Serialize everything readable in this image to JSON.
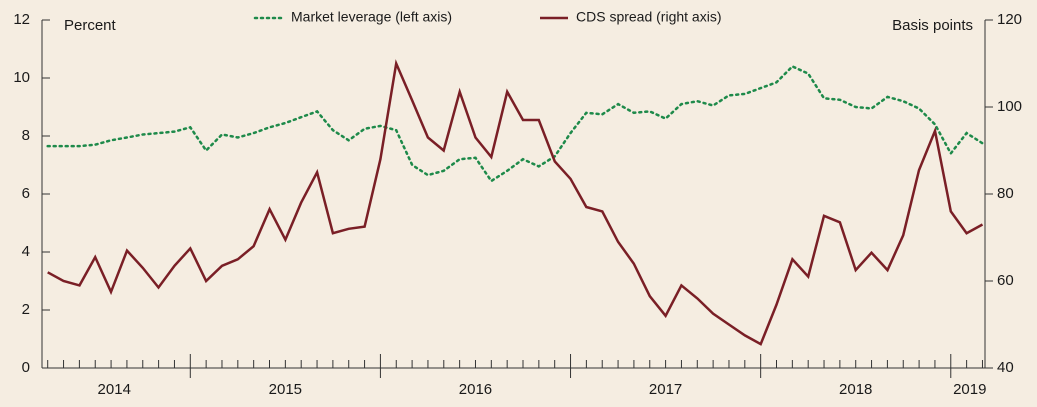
{
  "chart_data": {
    "type": "line",
    "y_label": "Percent",
    "y2_label": "Basis points",
    "x": [
      2014.25,
      2014.333,
      2014.417,
      2014.5,
      2014.583,
      2014.667,
      2014.75,
      2014.833,
      2014.917,
      2015.0,
      2015.083,
      2015.167,
      2015.25,
      2015.333,
      2015.417,
      2015.5,
      2015.583,
      2015.667,
      2015.75,
      2015.833,
      2015.917,
      2016.0,
      2016.083,
      2016.167,
      2016.25,
      2016.333,
      2016.417,
      2016.5,
      2016.583,
      2016.667,
      2016.75,
      2016.833,
      2016.917,
      2017.0,
      2017.083,
      2017.167,
      2017.25,
      2017.333,
      2017.417,
      2017.5,
      2017.583,
      2017.667,
      2017.75,
      2017.833,
      2017.917,
      2018.0,
      2018.083,
      2018.167,
      2018.25,
      2018.333,
      2018.417,
      2018.5,
      2018.583,
      2018.667,
      2018.75,
      2018.833,
      2018.917,
      2019.0,
      2019.083,
      2019.167
    ],
    "series": [
      {
        "name": "Market leverage (left axis)",
        "color": "#1e8a4a",
        "style": "dotted",
        "values": [
          7.65,
          7.65,
          7.65,
          7.7,
          7.85,
          7.95,
          8.05,
          8.1,
          8.15,
          8.3,
          7.5,
          8.05,
          7.95,
          8.1,
          8.3,
          8.45,
          8.65,
          8.85,
          8.2,
          7.85,
          8.25,
          8.35,
          8.2,
          7.0,
          6.65,
          6.8,
          7.2,
          7.25,
          6.45,
          6.8,
          7.2,
          6.95,
          7.3,
          8.1,
          8.8,
          8.75,
          9.1,
          8.8,
          8.85,
          8.6,
          9.1,
          9.2,
          9.05,
          9.4,
          9.45,
          9.65,
          9.85,
          10.4,
          10.15,
          9.3,
          9.25,
          9.0,
          8.95,
          9.35,
          9.2,
          8.95,
          8.4,
          7.4,
          8.1,
          7.75
        ]
      },
      {
        "name": "CDS spread (right axis)",
        "color": "#7a1f26",
        "style": "solid",
        "axis": "y2",
        "values": [
          62,
          60,
          59,
          65.5,
          57.5,
          67,
          63,
          58.5,
          63.5,
          67.5,
          60,
          63.5,
          65,
          68,
          76.5,
          69.5,
          78,
          85,
          71,
          72,
          72.5,
          88,
          110,
          101.5,
          93,
          90,
          103.5,
          93,
          88.5,
          103.5,
          97,
          97,
          87.5,
          83.5,
          77,
          76,
          69,
          64,
          56.5,
          52,
          59,
          56,
          52.5,
          50,
          47.5,
          45.5,
          54.5,
          65,
          61,
          75,
          73.5,
          62.5,
          66.5,
          62.5,
          70.5,
          85.5,
          94.5,
          76,
          71,
          73
        ]
      }
    ],
    "xlim": [
      2014.22,
      2019.18
    ],
    "xticks": [
      {
        "value": 2014.6,
        "label": "2014"
      },
      {
        "value": 2015.5,
        "label": "2015"
      },
      {
        "value": 2016.5,
        "label": "2016"
      },
      {
        "value": 2017.5,
        "label": "2017"
      },
      {
        "value": 2018.5,
        "label": "2018"
      },
      {
        "value": 2019.1,
        "label": "2019"
      }
    ],
    "ylim": [
      0,
      12
    ],
    "yticks": [
      0,
      2,
      4,
      6,
      8,
      10,
      12
    ],
    "y2lim": [
      40,
      120
    ],
    "y2ticks": [
      40,
      60,
      80,
      100,
      120
    ]
  }
}
